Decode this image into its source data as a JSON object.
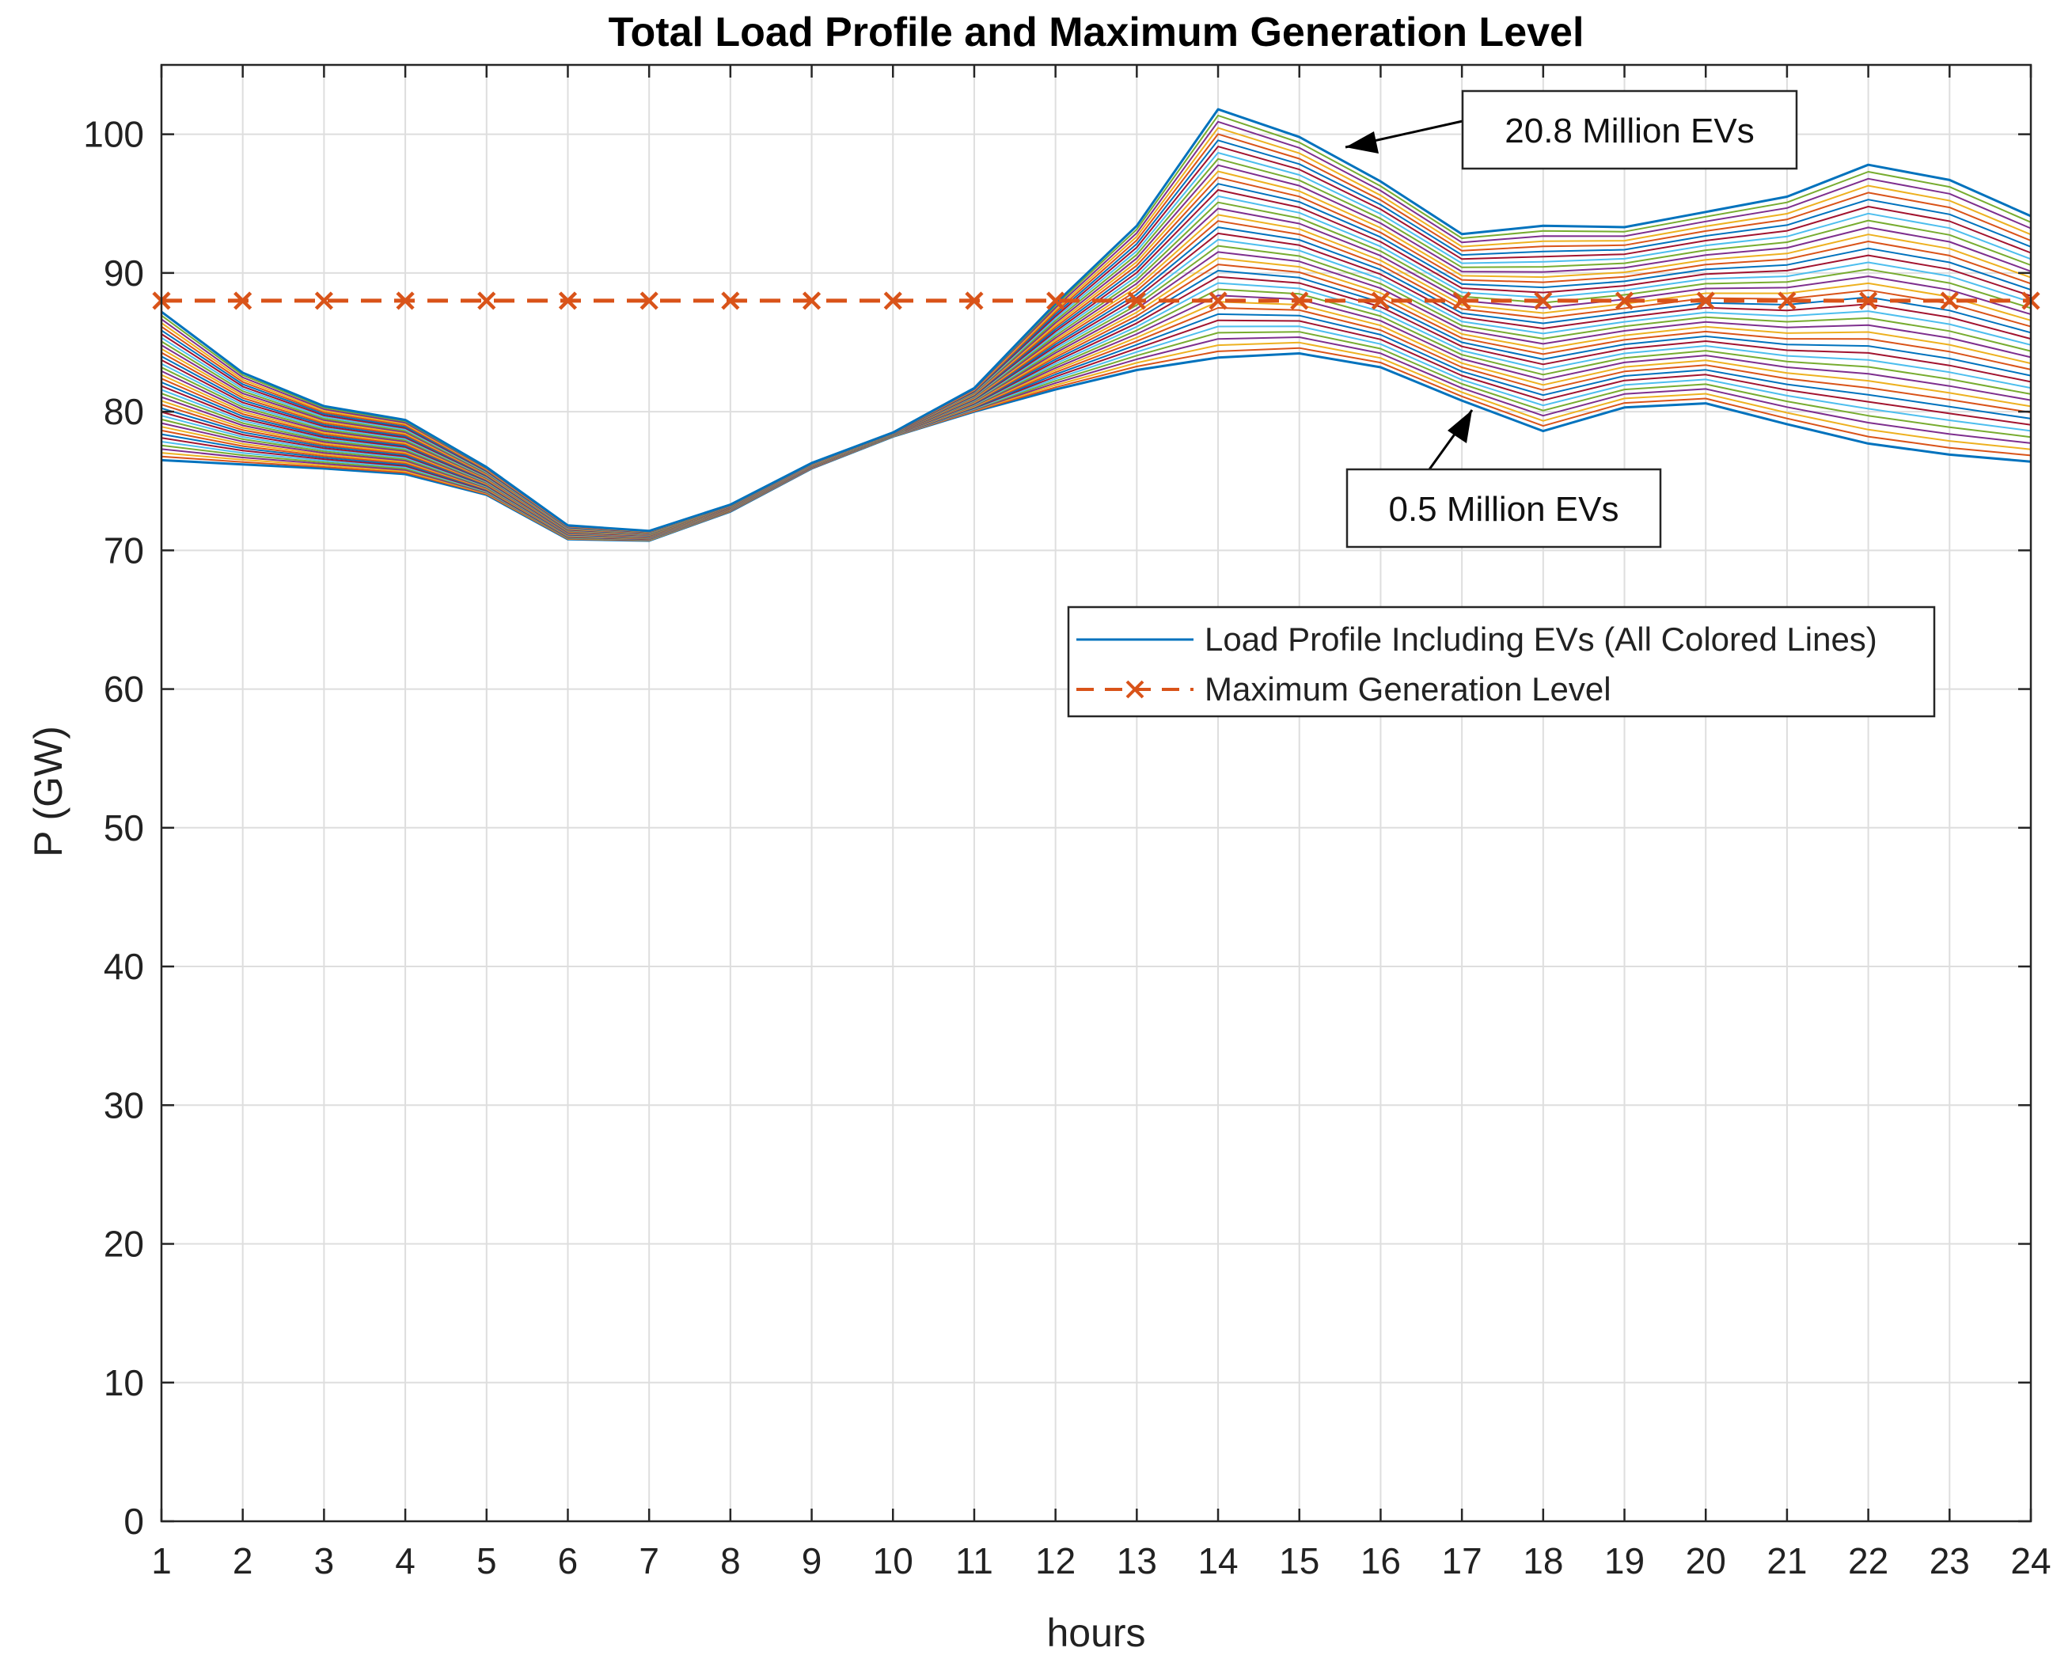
{
  "chart_data": {
    "type": "line",
    "title": "Total Load Profile and Maximum Generation Level",
    "xlabel": "hours",
    "ylabel": "P (GW)",
    "xlim": [
      1,
      24
    ],
    "ylim": [
      0,
      105
    ],
    "xticks": [
      1,
      2,
      3,
      4,
      5,
      6,
      7,
      8,
      9,
      10,
      11,
      12,
      13,
      14,
      15,
      16,
      17,
      18,
      19,
      20,
      21,
      22,
      23,
      24
    ],
    "yticks": [
      0,
      10,
      20,
      30,
      40,
      50,
      60,
      70,
      80,
      90,
      100
    ],
    "grid": true,
    "legend_position": "upper-right",
    "x": [
      1,
      2,
      3,
      4,
      5,
      6,
      7,
      8,
      9,
      10,
      11,
      12,
      13,
      14,
      15,
      16,
      17,
      18,
      19,
      20,
      21,
      22,
      23,
      24
    ],
    "series": [
      {
        "name": "Load Profile Including EVs (All Colored Lines)",
        "style": "solid",
        "color": "#0072BD",
        "lower_envelope_label": "0.5 Million EVs",
        "lower_envelope": [
          76.5,
          76.2,
          75.9,
          75.5,
          74.0,
          70.8,
          70.7,
          72.8,
          75.9,
          78.2,
          80.0,
          81.6,
          83.0,
          83.9,
          84.2,
          83.2,
          80.8,
          78.6,
          80.3,
          80.6,
          79.1,
          77.7,
          76.9,
          76.4
        ],
        "upper_envelope_label": "20.8 Million EVs",
        "upper_envelope": [
          87.2,
          82.8,
          80.4,
          79.4,
          76.0,
          71.8,
          71.4,
          73.3,
          76.3,
          78.5,
          81.7,
          87.8,
          93.4,
          101.8,
          99.8,
          96.6,
          92.8,
          93.4,
          93.3,
          94.4,
          95.5,
          97.8,
          96.7,
          94.1
        ],
        "line_count": 41
      },
      {
        "name": "Maximum Generation Level",
        "style": "dashed",
        "marker": "x",
        "color": "#D95319",
        "values": [
          88,
          88,
          88,
          88,
          88,
          88,
          88,
          88,
          88,
          88,
          88,
          88,
          88,
          88,
          88,
          88,
          88,
          88,
          88,
          88,
          88,
          88,
          88,
          88
        ]
      }
    ],
    "annotations": [
      {
        "text": "20.8 Million EVs",
        "points_to_hour": 15.6,
        "points_to_value": 97.2
      },
      {
        "text": "0.5 Million EVs",
        "points_to_hour": 17.1,
        "points_to_value": 80.2
      }
    ],
    "line_palette": [
      "#0072BD",
      "#D95319",
      "#EDB120",
      "#7E2F8E",
      "#77AC30",
      "#4DBEEE",
      "#A2142F"
    ]
  }
}
